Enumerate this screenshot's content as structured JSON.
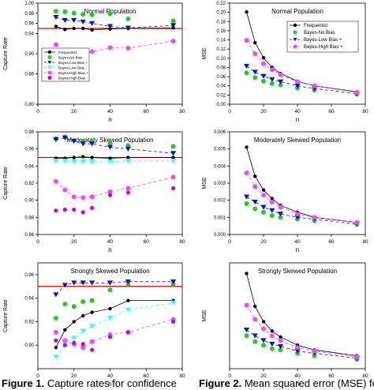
{
  "captions": {
    "left_label": "Figure 1.",
    "left_text": "Capture rates for confidence",
    "right_label": "Figure 2.",
    "right_text": "Mean squared error (MSE) for"
  },
  "colors": {
    "frequentist": "#000000",
    "no_bias": "#22cc22",
    "low_bias_plus": "#1111cc",
    "low_bias_minus": "#33ffff",
    "high_bias_plus": "#ff44ff",
    "high_bias_minus": "#cc00cc",
    "target_line": "#dd0000"
  },
  "chart_data": [
    {
      "id": "cr_normal",
      "type": "scatter",
      "title": "Normal Population",
      "xlabel": "n",
      "ylabel": "Capture Rate",
      "xlim": [
        0,
        80
      ],
      "ylim": [
        0.8,
        1.0
      ],
      "xticks": [
        0,
        20,
        40,
        60,
        80
      ],
      "yticks": [
        0.8,
        0.86,
        0.9,
        0.94,
        0.96,
        0.98,
        1.0
      ],
      "yticklabels": [
        "0.80",
        "0.86",
        "0.90",
        "0.94",
        "0.96",
        "0.98",
        "1.00"
      ],
      "hline": 0.95,
      "legend": [
        "Frequentist",
        "Bayes-No Bias",
        "Bayes-Low Bias +",
        "Bayes-Low Bias -",
        "Bayes-High Bias +",
        "Bayes-High Bias -"
      ],
      "legend_position": "bottom-left",
      "series": [
        {
          "name": "Frequentist",
          "line": true,
          "x": [
            10,
            15,
            20,
            25,
            30,
            40,
            50,
            75
          ],
          "y": [
            0.954,
            0.948,
            0.95,
            0.95,
            0.947,
            0.949,
            0.95,
            0.951
          ]
        },
        {
          "name": "Bayes-No Bias",
          "line": false,
          "x": [
            10,
            15,
            20,
            25,
            30,
            40,
            50,
            75
          ],
          "y": [
            0.984,
            0.983,
            0.98,
            0.978,
            0.977,
            0.979,
            0.969,
            0.965
          ]
        },
        {
          "name": "Bayes-Low Bias +",
          "line": true,
          "x": [
            10,
            15,
            20,
            25,
            30,
            40,
            50,
            75
          ],
          "y": [
            0.972,
            0.966,
            0.966,
            0.963,
            0.96,
            0.954,
            0.951,
            0.956
          ]
        },
        {
          "name": "Bayes-High Bias +",
          "line": true,
          "x": [
            10,
            15,
            20,
            25,
            30,
            40,
            50,
            75
          ],
          "y": [
            0.918,
            0.902,
            0.906,
            0.895,
            0.904,
            0.912,
            0.911,
            0.925
          ]
        }
      ]
    },
    {
      "id": "cr_moderate",
      "type": "scatter",
      "title": "Moderately Skewed Population",
      "xlabel": "n",
      "ylabel": "Capture Rate",
      "xlim": [
        0,
        80
      ],
      "ylim": [
        0.86,
        0.98
      ],
      "xticks": [
        0,
        20,
        40,
        60,
        80
      ],
      "yticks": [
        0.86,
        0.88,
        0.9,
        0.92,
        0.94,
        0.96,
        0.98
      ],
      "yticklabels": [
        "0.86",
        "0.88",
        "0.90",
        "0.92",
        "0.94",
        "0.96",
        "0.98"
      ],
      "hline": 0.95,
      "series": [
        {
          "name": "Frequentist",
          "line": true,
          "x": [
            10,
            15,
            20,
            25,
            30,
            40,
            50,
            75
          ],
          "y": [
            0.949,
            0.949,
            0.95,
            0.951,
            0.95,
            0.949,
            0.95,
            0.95
          ]
        },
        {
          "name": "Bayes-No Bias",
          "line": false,
          "x": [
            10,
            15,
            20,
            25,
            30,
            40,
            50,
            75
          ],
          "y": [
            0.972,
            0.974,
            0.97,
            0.969,
            0.969,
            0.967,
            0.964,
            0.963
          ]
        },
        {
          "name": "Bayes-Low Bias +",
          "line": true,
          "x": [
            10,
            15,
            20,
            25,
            30,
            40,
            50,
            75
          ],
          "y": [
            0.971,
            0.973,
            0.969,
            0.966,
            0.966,
            0.962,
            0.96,
            0.955
          ]
        },
        {
          "name": "Bayes-Low Bias -",
          "line": true,
          "x": [
            10,
            15,
            20,
            25,
            30,
            40,
            50,
            75
          ],
          "y": [
            0.946,
            0.946,
            0.945,
            0.945,
            0.945,
            0.945,
            0.946,
            0.946
          ]
        },
        {
          "name": "Bayes-High Bias +",
          "line": true,
          "x": [
            10,
            15,
            20,
            25,
            30,
            40,
            50,
            75
          ],
          "y": [
            0.922,
            0.912,
            0.904,
            0.903,
            0.904,
            0.91,
            0.914,
            0.927
          ]
        },
        {
          "name": "Bayes-High Bias -",
          "line": false,
          "x": [
            10,
            15,
            20,
            25,
            30,
            40,
            50,
            75
          ],
          "y": [
            0.888,
            0.889,
            0.889,
            0.886,
            0.891,
            0.906,
            0.909,
            0.914
          ]
        }
      ]
    },
    {
      "id": "cr_strong",
      "type": "scatter",
      "title": "Strongly Skewed Population",
      "xlabel": "n",
      "ylabel": "Capture Rate",
      "xlim": [
        0,
        80
      ],
      "ylim": [
        0.88,
        0.97
      ],
      "xticks": [
        0,
        20,
        40,
        60,
        80
      ],
      "yticks": [
        0.9,
        0.92,
        0.94,
        0.96
      ],
      "yticklabels": [
        "0.90",
        "0.92",
        "0.94",
        "0.96"
      ],
      "hline": 0.95,
      "series": [
        {
          "name": "Frequentist",
          "line": true,
          "x": [
            10,
            15,
            20,
            25,
            30,
            40,
            50,
            75
          ],
          "y": [
            0.898,
            0.913,
            0.92,
            0.925,
            0.928,
            0.931,
            0.938,
            0.938
          ]
        },
        {
          "name": "Bayes-No Bias",
          "line": false,
          "x": [
            10,
            15,
            20,
            25,
            30,
            40,
            50,
            75
          ],
          "y": [
            0.923,
            0.935,
            0.933,
            0.937,
            0.938,
            0.947,
            0.952,
            0.952
          ]
        },
        {
          "name": "Bayes-Low Bias +",
          "line": true,
          "x": [
            10,
            15,
            20,
            25,
            30,
            40,
            50,
            75
          ],
          "y": [
            0.943,
            0.951,
            0.953,
            0.953,
            0.953,
            0.953,
            0.954,
            0.954
          ]
        },
        {
          "name": "Bayes-Low Bias -",
          "line": true,
          "x": [
            10,
            15,
            20,
            25,
            30,
            40,
            50,
            75
          ],
          "y": [
            0.89,
            0.901,
            0.906,
            0.912,
            0.916,
            0.923,
            0.93,
            0.936
          ]
        },
        {
          "name": "Bayes-High Bias +",
          "line": true,
          "x": [
            10,
            15,
            20,
            25,
            30,
            40,
            50,
            75
          ],
          "y": [
            0.911,
            0.904,
            0.901,
            0.898,
            0.903,
            0.909,
            0.911,
            0.922
          ]
        },
        {
          "name": "Bayes-High Bias -",
          "line": false,
          "x": [
            10,
            15,
            20,
            25,
            30,
            40,
            50,
            75
          ],
          "y": [
            0.904,
            0.9,
            0.902,
            0.901,
            0.896,
            0.907,
            0.911,
            0.92
          ]
        }
      ]
    },
    {
      "id": "mse_normal",
      "type": "scatter",
      "title": "Normal Population",
      "xlabel": "n",
      "ylabel": "MSE",
      "xlim": [
        0,
        80
      ],
      "ylim": [
        0.0,
        0.22
      ],
      "xticks": [
        0,
        20,
        40,
        60,
        80
      ],
      "yticks": [
        0.0,
        0.02,
        0.04,
        0.06,
        0.08,
        0.1,
        0.12,
        0.14,
        0.16,
        0.18,
        0.2,
        0.22
      ],
      "yticklabels": [
        "0.00",
        "0.02",
        "0.04",
        "0.06",
        "0.08",
        "0.10",
        "0.12",
        "0.14",
        "0.16",
        "0.18",
        "0.20",
        "0.22"
      ],
      "legend": [
        "Frequentist",
        "Bayes-No Bias",
        "Bayes-Low Bias +",
        "Bayes-High Bias +"
      ],
      "legend_position": "top-right",
      "series": [
        {
          "name": "Frequentist",
          "line": true,
          "x": [
            10,
            15,
            20,
            25,
            30,
            40,
            50,
            75
          ],
          "y": [
            0.201,
            0.134,
            0.101,
            0.08,
            0.067,
            0.05,
            0.04,
            0.027
          ]
        },
        {
          "name": "Bayes-No Bias",
          "line": false,
          "x": [
            10,
            15,
            20,
            25,
            30,
            40,
            50,
            75
          ],
          "y": [
            0.068,
            0.058,
            0.05,
            0.045,
            0.042,
            0.035,
            0.031,
            0.022
          ]
        },
        {
          "name": "Bayes-Low Bias +",
          "line": true,
          "x": [
            10,
            15,
            20,
            25,
            30,
            40,
            50,
            75
          ],
          "y": [
            0.083,
            0.07,
            0.061,
            0.054,
            0.049,
            0.04,
            0.034,
            0.023
          ]
        },
        {
          "name": "Bayes-High Bias +",
          "line": true,
          "x": [
            10,
            15,
            20,
            25,
            30,
            40,
            50,
            75
          ],
          "y": [
            0.139,
            0.11,
            0.088,
            0.075,
            0.064,
            0.049,
            0.04,
            0.026
          ]
        }
      ]
    },
    {
      "id": "mse_moderate",
      "type": "scatter",
      "title": "Moderately Skewed Population",
      "xlabel": "n",
      "ylabel": "MSE",
      "xlim": [
        0,
        80
      ],
      "ylim": [
        0.0,
        0.006
      ],
      "xticks": [
        0,
        20,
        40,
        60,
        80
      ],
      "yticks": [
        0.0,
        0.001,
        0.002,
        0.003,
        0.004,
        0.005,
        0.006
      ],
      "yticklabels": [
        "0.000",
        "0.001",
        "0.002",
        "0.003",
        "0.004",
        "0.005",
        "0.006"
      ],
      "series": [
        {
          "name": "Frequentist",
          "line": true,
          "x": [
            10,
            15,
            20,
            25,
            30,
            40,
            50,
            75
          ],
          "y": [
            0.0051,
            0.0034,
            0.0026,
            0.0021,
            0.0017,
            0.0013,
            0.001,
            0.0007
          ]
        },
        {
          "name": "Bayes-No Bias",
          "line": false,
          "x": [
            10,
            15,
            20,
            25,
            30,
            40,
            50,
            75
          ],
          "y": [
            0.0018,
            0.0015,
            0.0013,
            0.0011,
            0.001,
            0.0009,
            0.0008,
            0.0006
          ]
        },
        {
          "name": "Bayes-Low Bias +",
          "line": true,
          "x": [
            10,
            15,
            20,
            25,
            30,
            40,
            50,
            75
          ],
          "y": [
            0.0022,
            0.0019,
            0.0016,
            0.0014,
            0.0012,
            0.001,
            0.0009,
            0.0006
          ]
        },
        {
          "name": "Bayes-High Bias +",
          "line": true,
          "x": [
            10,
            15,
            20,
            25,
            30,
            40,
            50,
            75
          ],
          "y": [
            0.0036,
            0.0028,
            0.0023,
            0.0019,
            0.0016,
            0.0012,
            0.001,
            0.0007
          ]
        }
      ]
    },
    {
      "id": "mse_strong",
      "type": "scatter",
      "title": "Strongly Skewed Population",
      "xlabel": "n",
      "ylabel": "MSE",
      "xlim": [
        0,
        80
      ],
      "ylim": [
        0.0,
        0.9
      ],
      "xticks": [
        0,
        20,
        40,
        60,
        80
      ],
      "yticks": [],
      "yticklabels": [],
      "series": [
        {
          "name": "Frequentist",
          "line": true,
          "x": [
            10,
            15,
            20,
            25,
            30,
            40,
            50,
            75
          ],
          "y": [
            0.81,
            0.53,
            0.4,
            0.32,
            0.27,
            0.2,
            0.16,
            0.11
          ]
        },
        {
          "name": "Bayes-No Bias",
          "line": false,
          "x": [
            10,
            15,
            20,
            25,
            30,
            40,
            50,
            75
          ],
          "y": [
            0.28,
            0.23,
            0.2,
            0.17,
            0.16,
            0.13,
            0.11,
            0.08
          ]
        },
        {
          "name": "Bayes-Low Bias +",
          "line": true,
          "x": [
            10,
            15,
            20,
            25,
            30,
            40,
            50,
            75
          ],
          "y": [
            0.33,
            0.28,
            0.24,
            0.21,
            0.19,
            0.15,
            0.13,
            0.09
          ]
        },
        {
          "name": "Bayes-High Bias +",
          "line": true,
          "x": [
            10,
            15,
            20,
            25,
            30,
            40,
            50,
            75
          ],
          "y": [
            0.54,
            0.42,
            0.34,
            0.28,
            0.24,
            0.18,
            0.15,
            0.1
          ]
        }
      ]
    }
  ]
}
